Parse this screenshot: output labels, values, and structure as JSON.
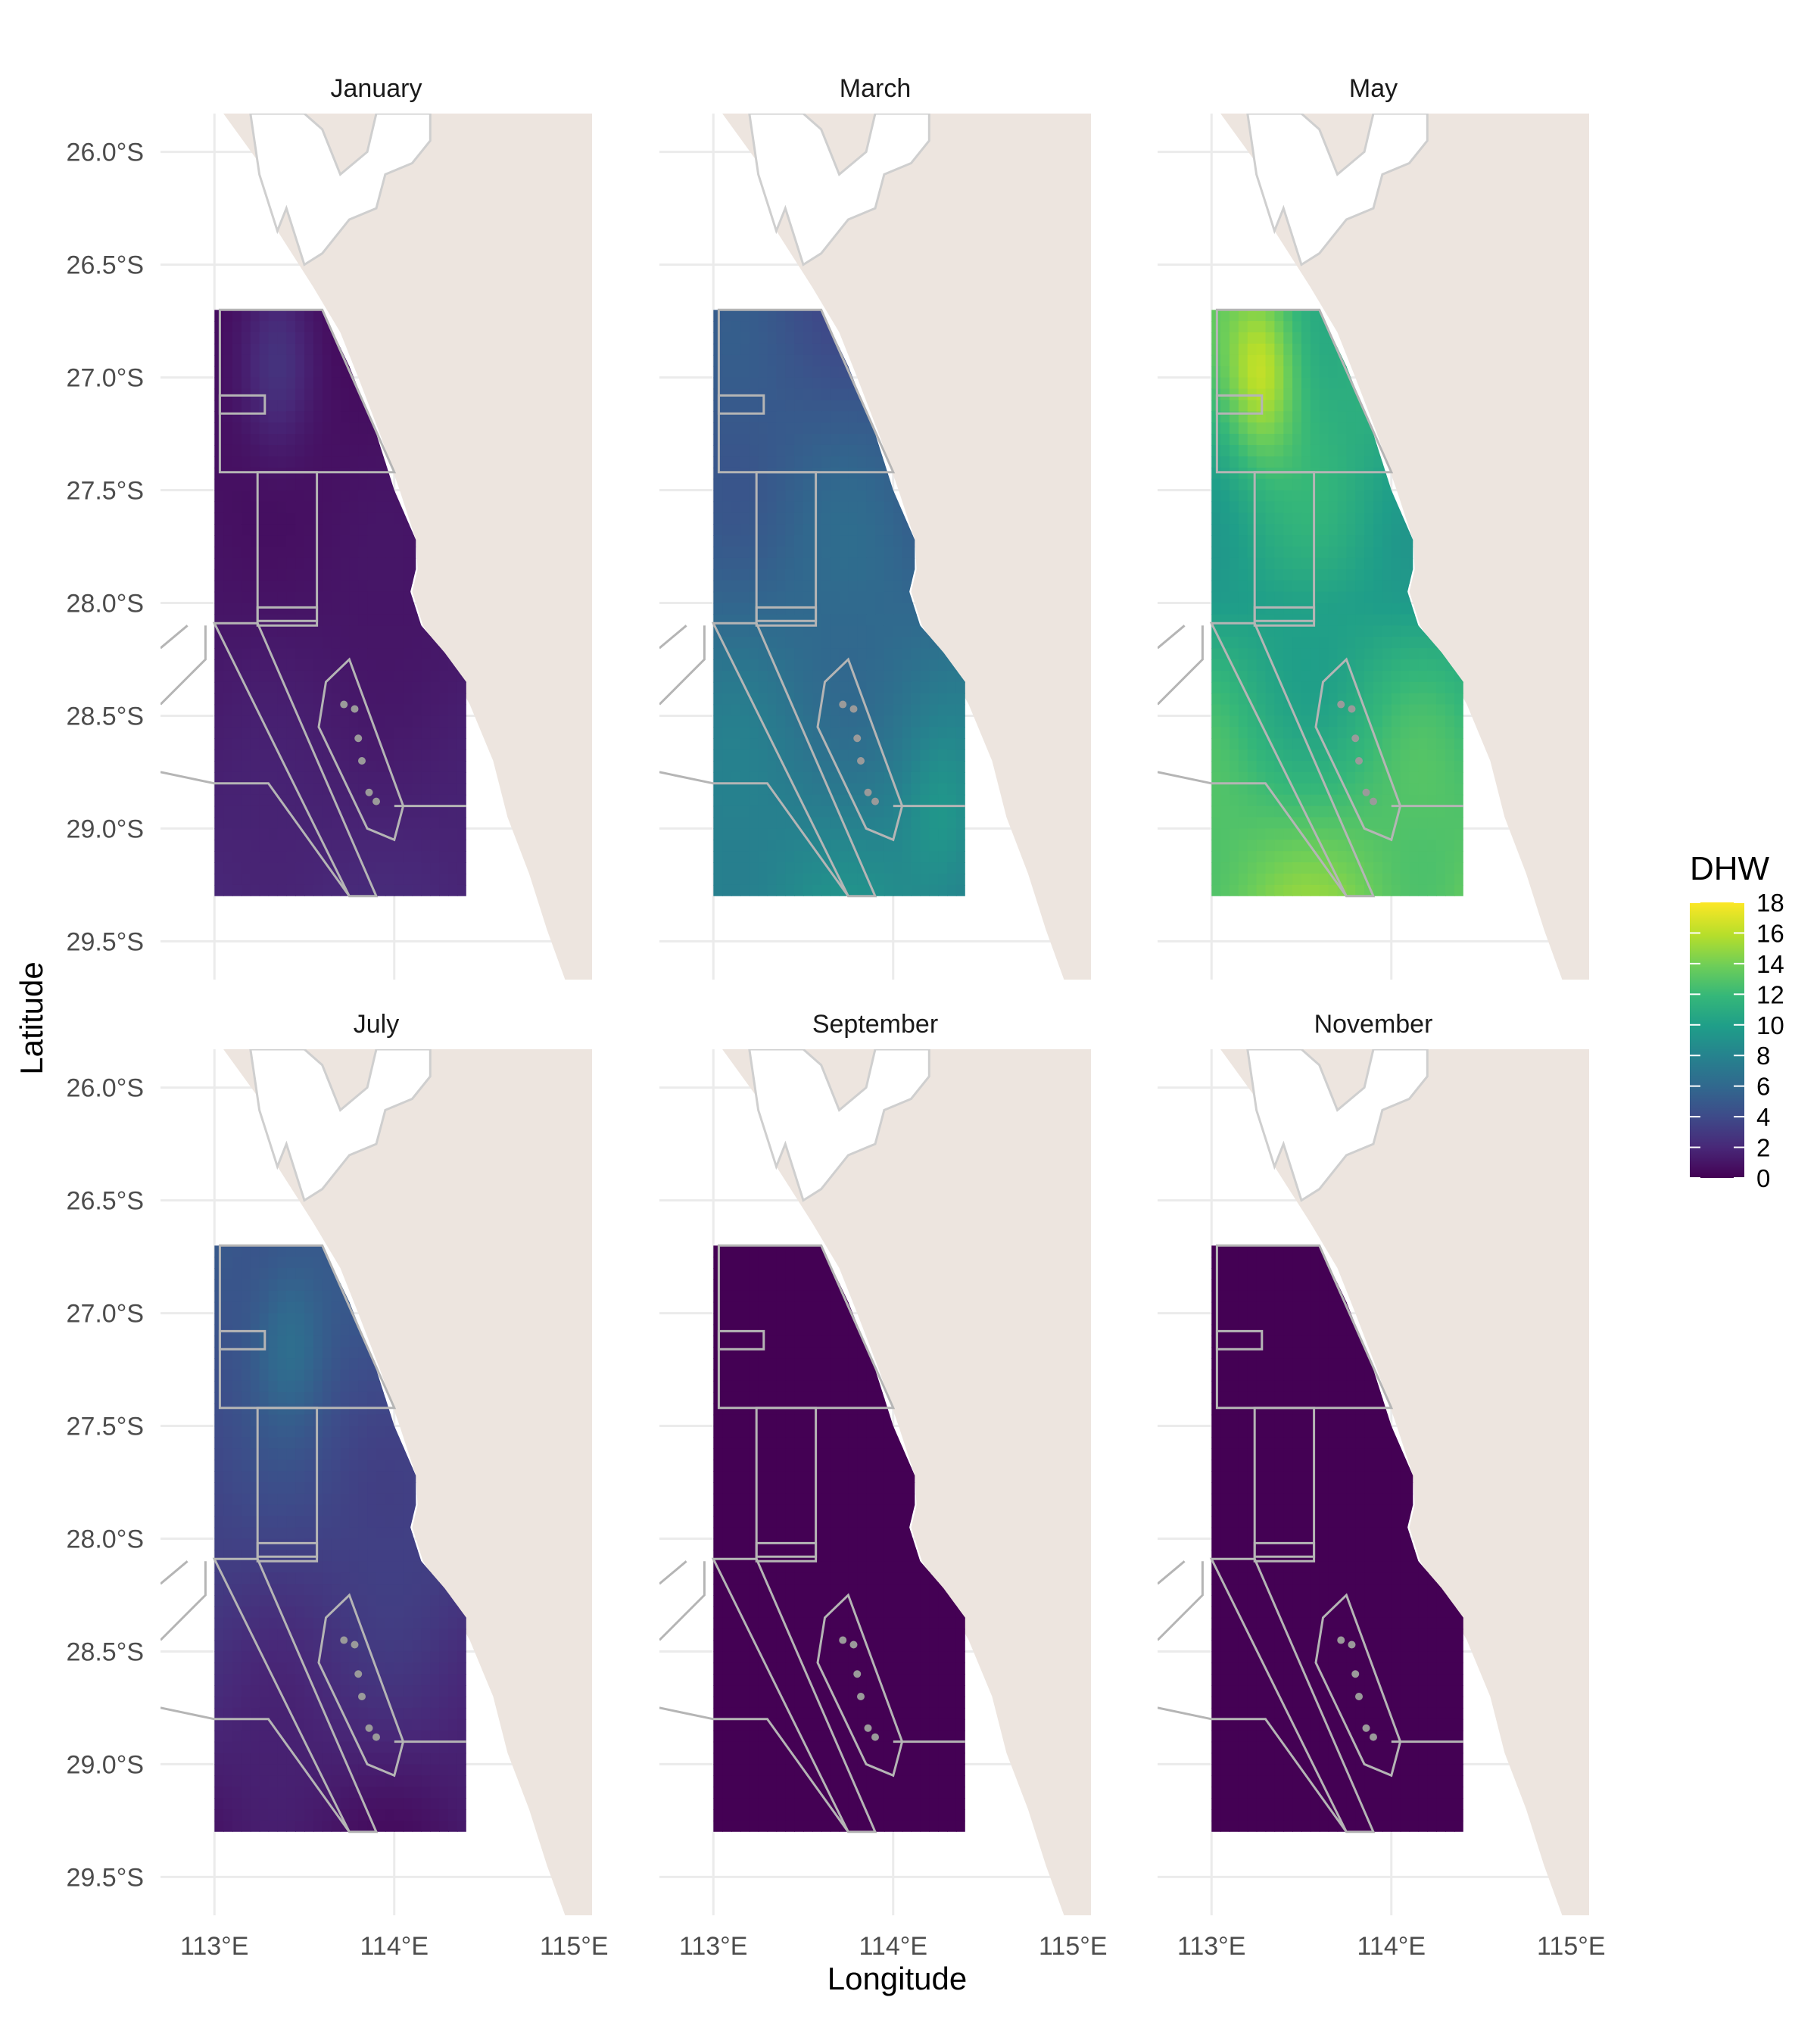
{
  "map_data": {
    "type": "faceted-raster-map",
    "panels": [
      {
        "title": "January",
        "dhw_ramp": [
          0.5,
          1.0,
          2.0
        ],
        "hotspot": [
          0.25,
          0.1
        ],
        "hotspot_value": 2.5
      },
      {
        "title": "March",
        "dhw_ramp": [
          4.5,
          6.0,
          8.5
        ],
        "hotspot": [
          0.9,
          0.9
        ],
        "hotspot_value": 9.5
      },
      {
        "title": "May",
        "dhw_ramp": [
          12.0,
          10.0,
          14.0
        ],
        "hotspot": [
          0.2,
          0.1
        ],
        "hotspot_value": 16.5
      },
      {
        "title": "July",
        "dhw_ramp": [
          5.0,
          3.5,
          1.0
        ],
        "hotspot": [
          0.3,
          0.15
        ],
        "hotspot_value": 6.5
      },
      {
        "title": "September",
        "dhw_ramp": [
          0.0,
          0.0,
          0.0
        ],
        "hotspot": [
          0.5,
          0.5
        ],
        "hotspot_value": 0.0
      },
      {
        "title": "November",
        "dhw_ramp": [
          0.0,
          0.0,
          0.0
        ],
        "hotspot": [
          0.5,
          0.5
        ],
        "hotspot_value": 0.0
      }
    ],
    "x_ticks": [
      "113°E",
      "114°E",
      "115°E"
    ],
    "x_tick_values": [
      113,
      114,
      115
    ],
    "y_ticks": [
      "26.0°S",
      "26.5°S",
      "27.0°S",
      "27.5°S",
      "28.0°S",
      "28.5°S",
      "29.0°S",
      "29.5°S"
    ],
    "y_tick_values": [
      -26.0,
      -26.5,
      -27.0,
      -27.5,
      -28.0,
      -28.5,
      -29.0,
      -29.5
    ],
    "xlim": [
      112.7,
      115.1
    ],
    "ylim": [
      -29.67,
      -25.83
    ],
    "raster_extent": {
      "lon": [
        113.0,
        114.4
      ],
      "lat": [
        -29.3,
        -26.7
      ]
    },
    "xlabel": "Longitude",
    "ylabel": "Latitude",
    "legend": {
      "title": "DHW",
      "labels": [
        "18",
        "16",
        "14",
        "12",
        "10",
        "8",
        "6",
        "4",
        "2",
        "0"
      ],
      "range": [
        0,
        18
      ],
      "colormap": "viridis"
    }
  }
}
